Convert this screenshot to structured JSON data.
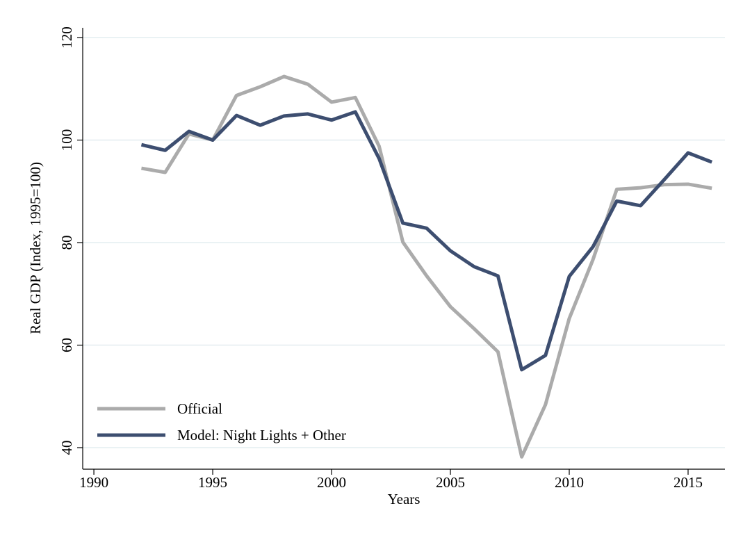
{
  "chart_data": {
    "type": "line",
    "x_label": "Years",
    "y_label": "Real GDP (Index, 1995=100)",
    "x": [
      1992,
      1993,
      1994,
      1995,
      1996,
      1997,
      1998,
      1999,
      2000,
      2001,
      2002,
      2003,
      2004,
      2005,
      2006,
      2007,
      2008,
      2009,
      2010,
      2011,
      2012,
      2013,
      2014,
      2015,
      2016
    ],
    "series": [
      {
        "name": "Official",
        "color": "#ababab",
        "values": [
          94.5,
          93.7,
          101.2,
          100,
          108.7,
          110.4,
          112.4,
          110.9,
          107.4,
          108.3,
          98.8,
          80.1,
          73.5,
          67.5,
          63.2,
          58.7,
          38.2,
          48.4,
          65.2,
          76.7,
          90.4,
          90.7,
          91.3,
          91.4,
          90.6
        ]
      },
      {
        "name": "Model: Night Lights + Other",
        "color": "#3d4e70",
        "values": [
          99.1,
          98.0,
          101.7,
          100,
          104.8,
          102.9,
          104.7,
          105.1,
          103.9,
          105.5,
          96.4,
          83.8,
          82.8,
          78.4,
          75.3,
          73.5,
          55.2,
          58.0,
          73.4,
          79.2,
          88.1,
          87.2,
          92.3,
          97.5,
          95.7
        ]
      }
    ],
    "xlim": [
      1989.53,
      2016.55
    ],
    "xticks": [
      1990,
      1995,
      2000,
      2005,
      2010,
      2015
    ],
    "ylim": [
      35.8,
      121.9
    ],
    "yticks": [
      40,
      60,
      80,
      100,
      120
    ],
    "grid": true,
    "legend": "lower left"
  }
}
